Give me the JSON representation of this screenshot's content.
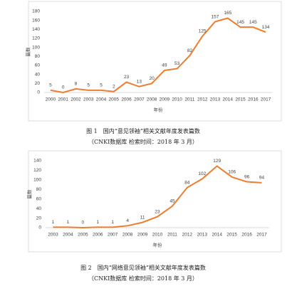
{
  "chart_data": [
    {
      "type": "line",
      "y_label": "篇数",
      "x_label": "年份",
      "categories": [
        "2000",
        "2001",
        "2002",
        "2003",
        "2004",
        "2005",
        "2006",
        "2007",
        "2008",
        "2009",
        "2010",
        "2011",
        "2012",
        "2013",
        "2014",
        "2015",
        "2016",
        "2017"
      ],
      "values": [
        5,
        0,
        8,
        5,
        5,
        2,
        23,
        13,
        20,
        49,
        53,
        82,
        125,
        157,
        165,
        145,
        145,
        134
      ],
      "color": "#ed7d31",
      "ylim": [
        0,
        180
      ],
      "yticks": [
        0,
        20,
        40,
        60,
        80,
        100,
        120,
        140,
        160,
        180
      ],
      "caption": "图 1　国内“意见领袖”相关文献年度发表篇数",
      "note": "（CNKI数据库 检索时间：2018 年 3 月）"
    },
    {
      "type": "line",
      "y_label": "篇数",
      "x_label": "年份",
      "categories": [
        "2003",
        "2004",
        "2005",
        "2006",
        "2007",
        "2008",
        "2009",
        "2010",
        "2011",
        "2012",
        "2013",
        "2014",
        "2015",
        "2016",
        "2017"
      ],
      "values": [
        1,
        1,
        0,
        1,
        1,
        4,
        11,
        23,
        45,
        84,
        102,
        129,
        106,
        96,
        94
      ],
      "color": "#ed7d31",
      "ylim": [
        0,
        140
      ],
      "yticks": [
        0,
        20,
        40,
        60,
        80,
        100,
        120,
        140
      ],
      "caption": "图 2　国内“网络意见领袖”相关文献年度发表篇数",
      "note": "（CNKI数据库 检索时间：2018 年 3 月）"
    }
  ]
}
